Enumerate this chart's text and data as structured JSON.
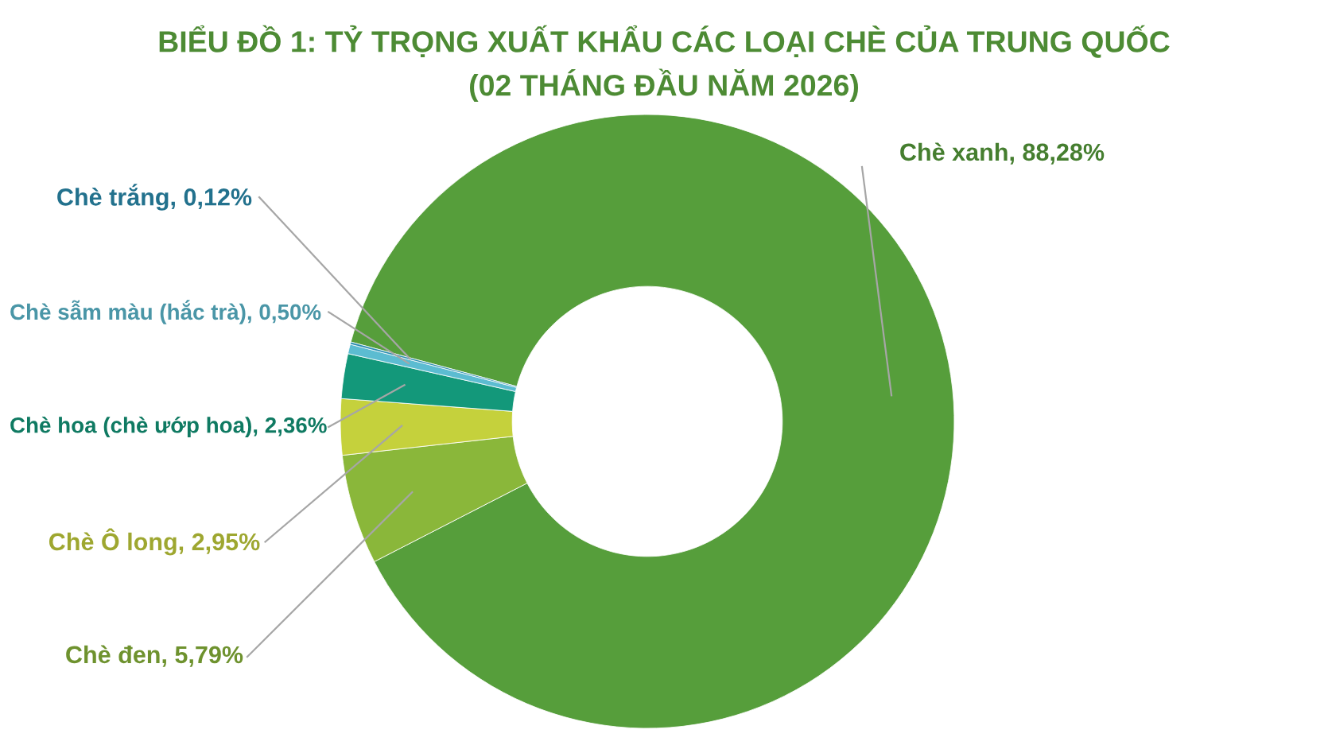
{
  "chart_data": {
    "type": "donut",
    "title": "BIỂU ĐỒ 1: TỶ TRỌNG XUẤT KHẨU CÁC LOẠI CHÈ CỦA TRUNG QUỐC\n(02 THÁNG ĐẦU NĂM 2026)",
    "categories": [
      "Chè xanh",
      "Chè đen",
      "Chè Ô long",
      "Chè hoa (chè ướp hoa)",
      "Chè sẫm màu (hắc trà)",
      "Chè trắng"
    ],
    "values": [
      88.28,
      5.79,
      2.95,
      2.36,
      0.5,
      0.12
    ],
    "value_labels": [
      "88,28%",
      "5,79%",
      "2,95%",
      "2,36%",
      "0,50%",
      "0,12%"
    ],
    "colors": [
      "#569e3b",
      "#8ab73a",
      "#c5d13c",
      "#13987a",
      "#5cbcd1",
      "#2b8db0"
    ],
    "legend": false
  }
}
